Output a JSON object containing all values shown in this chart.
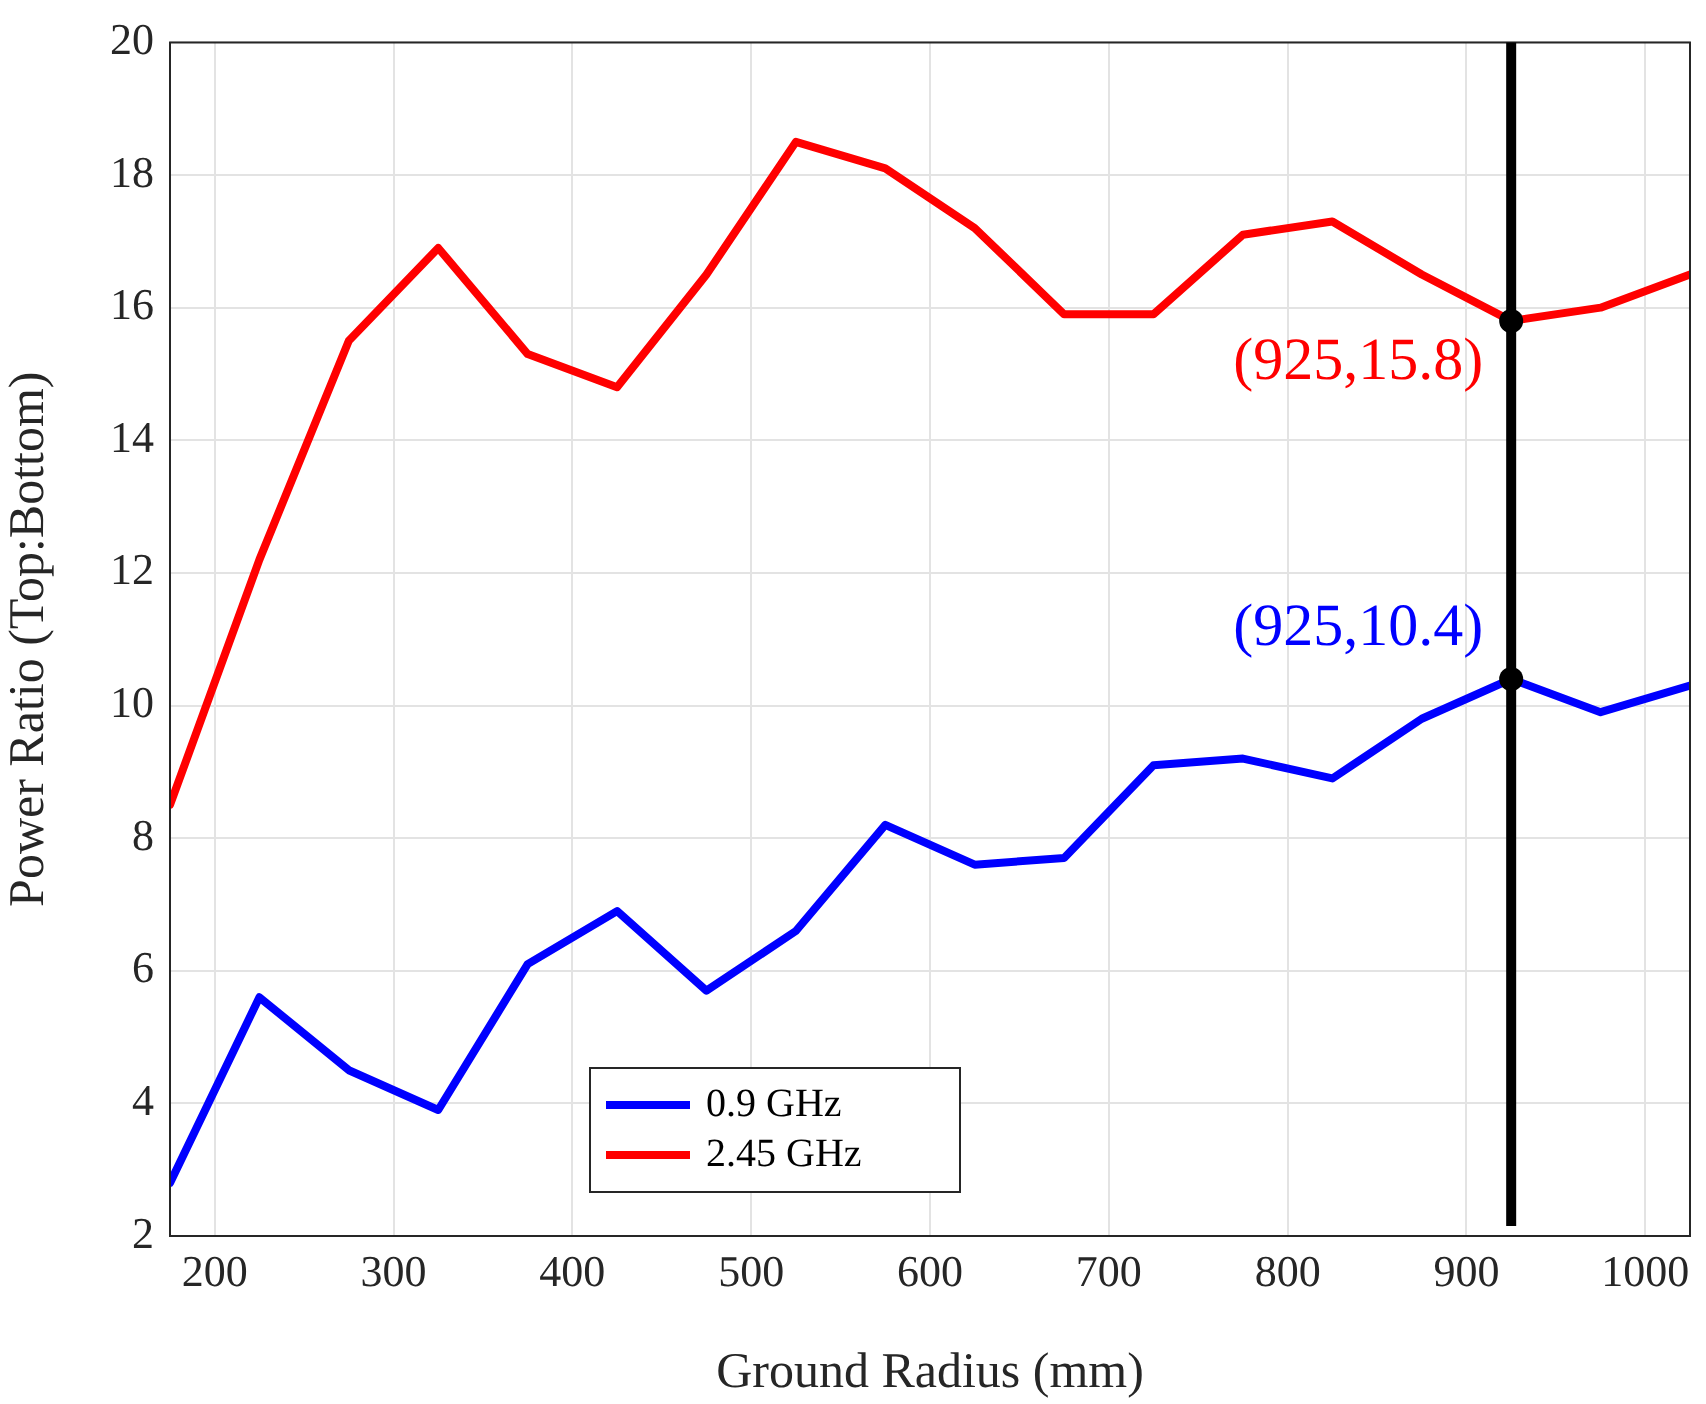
{
  "chart_data": {
    "type": "line",
    "xlabel": "Ground Radius (mm)",
    "ylabel": "Power Ratio (Top:Bottom)",
    "x": [
      175,
      225,
      275,
      325,
      375,
      425,
      475,
      525,
      575,
      625,
      675,
      725,
      775,
      825,
      875,
      925,
      975,
      1025
    ],
    "series": [
      {
        "name": "0.9 GHz",
        "color": "#0000ff",
        "values": [
          2.8,
          5.6,
          4.5,
          3.9,
          6.1,
          6.9,
          5.7,
          6.6,
          8.2,
          7.6,
          7.7,
          9.1,
          9.2,
          8.9,
          9.8,
          10.4,
          9.9,
          10.3
        ]
      },
      {
        "name": "2.45 GHz",
        "color": "#ff0000",
        "values": [
          8.5,
          12.2,
          15.5,
          16.9,
          15.3,
          14.8,
          16.5,
          18.5,
          18.1,
          17.2,
          15.9,
          15.9,
          17.1,
          17.3,
          16.5,
          15.8,
          16.0,
          16.5
        ]
      }
    ],
    "xlim": [
      175,
      1025
    ],
    "xticks": [
      200,
      300,
      400,
      500,
      600,
      700,
      800,
      900,
      1000
    ],
    "ylim": [
      2,
      20
    ],
    "yticks": [
      2,
      4,
      6,
      8,
      10,
      12,
      14,
      16,
      18,
      20
    ],
    "ref_lines": [
      {
        "axis": "x",
        "value": 925,
        "color": "#000000"
      }
    ],
    "annotations": [
      {
        "text": "(925,15.8)",
        "x": 925,
        "y": 15.8
      },
      {
        "text": "(925,10.4)",
        "x": 925,
        "y": 10.4
      }
    ],
    "grid": true,
    "legend": "bottom left",
    "marker": "none",
    "line_style": "solid"
  }
}
